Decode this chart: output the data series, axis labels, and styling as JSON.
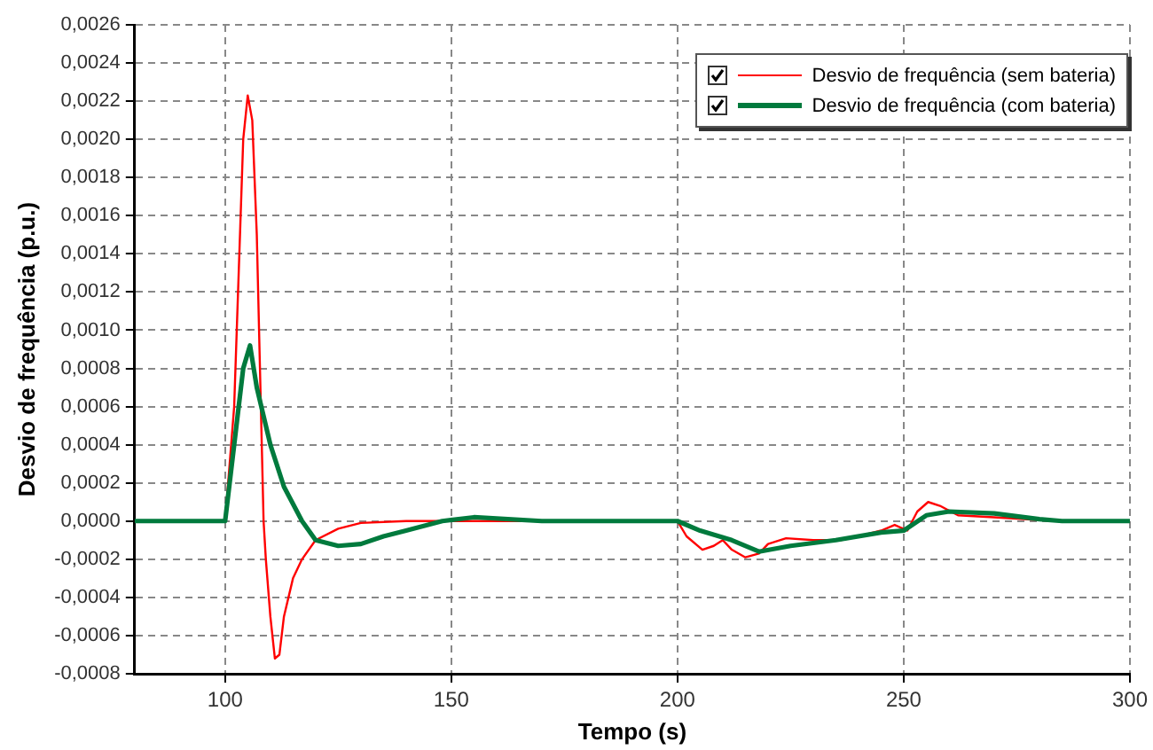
{
  "chart_data": {
    "type": "line",
    "xlabel": "Tempo (s)",
    "ylabel": "Desvio de frequência (p.u.)",
    "xlim": [
      80,
      300
    ],
    "xticks": [
      100,
      150,
      200,
      250,
      300
    ],
    "ylim": [
      -0.0008,
      0.0026
    ],
    "yticks": [
      {
        "value": -0.0008,
        "label": "-0,0008"
      },
      {
        "value": -0.0006,
        "label": "-0,0006"
      },
      {
        "value": -0.0004,
        "label": "-0,0004"
      },
      {
        "value": -0.0002,
        "label": "-0,0002"
      },
      {
        "value": 0,
        "label": "0,0000"
      },
      {
        "value": 0.0002,
        "label": "0,0002"
      },
      {
        "value": 0.0004,
        "label": "0,0004"
      },
      {
        "value": 0.0006,
        "label": "0,0006"
      },
      {
        "value": 0.0008,
        "label": "0,0008"
      },
      {
        "value": 0.001,
        "label": "0,0010"
      },
      {
        "value": 0.0012,
        "label": "0,0012"
      },
      {
        "value": 0.0014,
        "label": "0,0014"
      },
      {
        "value": 0.0016,
        "label": "0,0016"
      },
      {
        "value": 0.0018,
        "label": "0,0018"
      },
      {
        "value": 0.002,
        "label": "0,0020"
      },
      {
        "value": 0.0022,
        "label": "0,0022"
      },
      {
        "value": 0.0024,
        "label": "0,0024"
      },
      {
        "value": 0.0026,
        "label": "0,0026"
      }
    ],
    "grid": true,
    "legend": "top right",
    "marker": "none",
    "line_style": "solid",
    "series": [
      {
        "name": "Desvio de frequência (sem bateria)",
        "color": "#ff0000",
        "x": [
          80,
          100,
          102,
          103,
          104,
          105,
          106,
          107,
          108,
          108.5,
          109,
          110,
          111,
          112,
          113,
          115,
          117,
          120,
          125,
          130,
          140,
          150,
          200,
          202,
          205.5,
          208,
          210,
          212,
          215,
          218,
          220,
          224,
          230,
          236,
          240,
          245,
          248,
          250.8,
          253,
          255.4,
          258,
          262,
          270,
          284,
          300
        ],
        "values": [
          0,
          0,
          0.0006,
          0.0013,
          0.002,
          0.00223,
          0.0021,
          0.0015,
          0.0005,
          0,
          -0.0002,
          -0.0005,
          -0.00072,
          -0.0007,
          -0.0005,
          -0.0003,
          -0.0002,
          -0.0001,
          -4e-05,
          -1e-05,
          0,
          0,
          0,
          -8e-05,
          -0.00015,
          -0.00013,
          -0.0001,
          -0.00015,
          -0.00019,
          -0.00017,
          -0.00012,
          -9e-05,
          -0.0001,
          -0.0001,
          -8e-05,
          -5e-05,
          -2e-05,
          -5e-05,
          5e-05,
          0.0001,
          8e-05,
          3e-05,
          2e-05,
          0,
          0
        ]
      },
      {
        "name": "Desvio de frequência (com bateria)",
        "color": "#007a3d",
        "x": [
          80,
          100,
          102,
          104,
          105.5,
          107,
          110,
          113,
          117,
          120,
          125,
          130,
          135,
          140,
          148,
          155,
          170,
          200,
          205,
          212,
          218,
          225,
          235,
          245,
          250,
          255,
          260,
          270,
          280,
          285,
          300
        ],
        "values": [
          0,
          0,
          0.0004,
          0.0008,
          0.00092,
          0.0007,
          0.0004,
          0.00018,
          0,
          -0.0001,
          -0.00013,
          -0.00012,
          -8e-05,
          -5e-05,
          0,
          2e-05,
          0,
          0,
          -5e-05,
          -0.0001,
          -0.00016,
          -0.00013,
          -0.0001,
          -6e-05,
          -5e-05,
          3e-05,
          5e-05,
          4e-05,
          1e-05,
          0,
          0
        ]
      }
    ]
  }
}
